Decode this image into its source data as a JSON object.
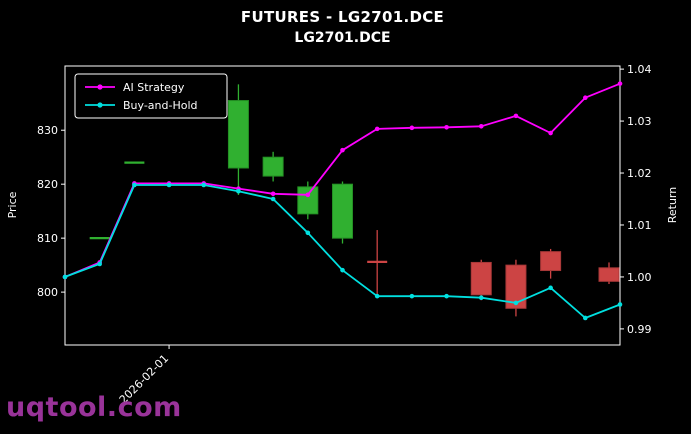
{
  "watermark": {
    "text": "uqtool.com",
    "color": "#993399"
  },
  "colors": {
    "background": "#000000",
    "text": "#ffffff",
    "axis": "#ffffff"
  },
  "chart_data": {
    "type": "candlestick",
    "title": "FUTURES - LG2701.DCE",
    "subtitle": "LG2701.DCE",
    "legend_position": "upper-left",
    "grid": false,
    "num_slots": 17,
    "x_axis": {
      "ticks": [
        {
          "index": 3,
          "label": "2026-02-01"
        }
      ]
    },
    "price_axis": {
      "label": "Price",
      "side": "left",
      "ticks": [
        800,
        810,
        820,
        830
      ],
      "range": [
        790.2,
        841.9
      ]
    },
    "return_axis": {
      "label": "Return",
      "side": "right",
      "ticks": [
        "0.99",
        "1.00",
        "1.01",
        "1.02",
        "1.03",
        "1.04"
      ],
      "range": [
        0.9869,
        1.0406
      ]
    },
    "candle_colors": {
      "up_fill": "#30b030",
      "up_edge": "#249024",
      "down_fill": "#cc4444",
      "down_edge": "#a83838"
    },
    "candles": [
      {
        "i": 1,
        "o": 810.0,
        "h": 810.0,
        "l": 810.0,
        "c": 810.0
      },
      {
        "i": 2,
        "o": 824.0,
        "h": 824.0,
        "l": 824.0,
        "c": 824.0
      },
      {
        "i": 5,
        "o": 823.0,
        "h": 838.5,
        "l": 818.0,
        "c": 835.5
      },
      {
        "i": 6,
        "o": 821.5,
        "h": 826.0,
        "l": 820.5,
        "c": 825.0
      },
      {
        "i": 7,
        "o": 814.5,
        "h": 820.5,
        "l": 813.5,
        "c": 819.5
      },
      {
        "i": 8,
        "o": 810.0,
        "h": 820.5,
        "l": 809.0,
        "c": 820.0
      },
      {
        "i": 9,
        "o": 805.8,
        "h": 811.5,
        "l": 799.5,
        "c": 805.4
      },
      {
        "i": 12,
        "o": 805.5,
        "h": 806.0,
        "l": 798.5,
        "c": 799.5
      },
      {
        "i": 13,
        "o": 805.0,
        "h": 806.0,
        "l": 795.5,
        "c": 797.0
      },
      {
        "i": 14,
        "o": 807.5,
        "h": 808.0,
        "l": 802.5,
        "c": 804.0
      },
      {
        "i": 16,
        "o": 804.5,
        "h": 805.5,
        "l": 801.5,
        "c": 802.0
      }
    ],
    "series": [
      {
        "name": "AI Strategy",
        "color": "#ff00ff",
        "values": [
          1.0,
          1.0028,
          1.018,
          1.018,
          1.018,
          1.017,
          1.016,
          1.0158,
          1.0244,
          1.0285,
          1.0287,
          1.0288,
          1.029,
          1.031,
          1.0277,
          1.0345,
          1.0372
        ]
      },
      {
        "name": "Buy-and-Hold",
        "color": "#00e0e0",
        "values": [
          1.0,
          1.0025,
          1.0177,
          1.0177,
          1.0177,
          1.0165,
          1.015,
          1.0085,
          1.0013,
          0.9963,
          0.9963,
          0.9963,
          0.996,
          0.995,
          0.9979,
          0.9921,
          0.9947
        ]
      }
    ]
  }
}
